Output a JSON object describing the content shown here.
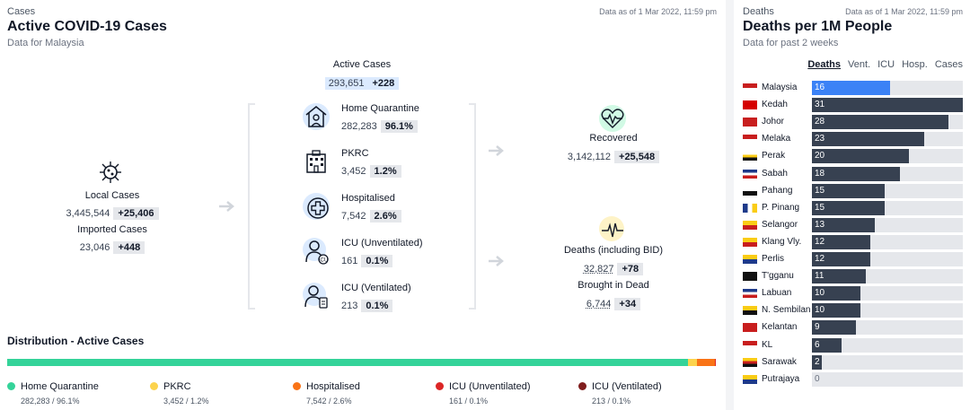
{
  "cases_card": {
    "eyebrow": "Cases",
    "asof": "Data as of 1 Mar 2022, 11:59 pm",
    "title": "Active COVID-19 Cases",
    "subtitle": "Data for Malaysia",
    "active": {
      "label": "Active Cases",
      "value": "293,651",
      "delta": "+228"
    },
    "local": {
      "label": "Local Cases",
      "value": "3,445,544",
      "delta": "+25,406"
    },
    "imported": {
      "label": "Imported Cases",
      "value": "23,046",
      "delta": "+448"
    },
    "categories": [
      {
        "label": "Home Quarantine",
        "value": "282,283",
        "pct": "96.1%",
        "icon": "home-quarantine-icon"
      },
      {
        "label": "PKRC",
        "value": "3,452",
        "pct": "1.2%",
        "icon": "pkrc-building-icon"
      },
      {
        "label": "Hospitalised",
        "value": "7,542",
        "pct": "2.6%",
        "icon": "hospital-cross-icon"
      },
      {
        "label": "ICU (Unventilated)",
        "value": "161",
        "pct": "0.1%",
        "icon": "icu-patient-icon"
      },
      {
        "label": "ICU (Ventilated)",
        "value": "213",
        "pct": "0.1%",
        "icon": "ventilator-icon"
      }
    ],
    "recovered": {
      "label": "Recovered",
      "value": "3,142,112",
      "delta": "+25,548"
    },
    "deaths": {
      "label": "Deaths (including BID)",
      "value": "32,827",
      "delta": "+78"
    },
    "bid": {
      "label": "Brought in Dead",
      "value": "6,744",
      "delta": "+34"
    },
    "distribution": {
      "title": "Distribution - Active Cases",
      "segments": [
        {
          "name": "Home Quarantine",
          "fraction": 0.961,
          "color": "#34d399",
          "text": "282,283 / 96.1%"
        },
        {
          "name": "PKRC",
          "fraction": 0.012,
          "color": "#fcd34d",
          "text": "3,452 / 1.2%"
        },
        {
          "name": "Hospitalised",
          "fraction": 0.026,
          "color": "#f97316",
          "text": "7,542 / 2.6%"
        },
        {
          "name": "ICU (Unventilated)",
          "fraction": 0.001,
          "color": "#dc2626",
          "text": "161 / 0.1%"
        },
        {
          "name": "ICU (Ventilated)",
          "fraction": 0.001,
          "color": "#7f1d1d",
          "text": "213 / 0.1%"
        }
      ]
    }
  },
  "deaths_card": {
    "eyebrow": "Deaths",
    "asof": "Data as of 1 Mar 2022, 11:59 pm",
    "title": "Deaths per 1M People",
    "subtitle": "Data for past 2 weeks",
    "tabs": [
      "Deaths",
      "Vent.",
      "ICU",
      "Hosp.",
      "Cases"
    ],
    "active_tab": "Deaths",
    "highlight_color": "#3b82f6",
    "bar_color": "#374151"
  },
  "chart_data": {
    "type": "bar",
    "orientation": "horizontal",
    "categories": [
      "Malaysia",
      "Kedah",
      "Johor",
      "Melaka",
      "Perak",
      "Sabah",
      "Pahang",
      "P. Pinang",
      "Selangor",
      "Klang Vly.",
      "Perlis",
      "T'gganu",
      "Labuan",
      "N. Sembilan",
      "Kelantan",
      "KL",
      "Sarawak",
      "Putrajaya"
    ],
    "values": [
      16,
      31,
      28,
      23,
      20,
      18,
      15,
      15,
      13,
      12,
      12,
      11,
      10,
      10,
      9,
      6,
      2,
      0
    ],
    "xlim": [
      0,
      31
    ]
  }
}
